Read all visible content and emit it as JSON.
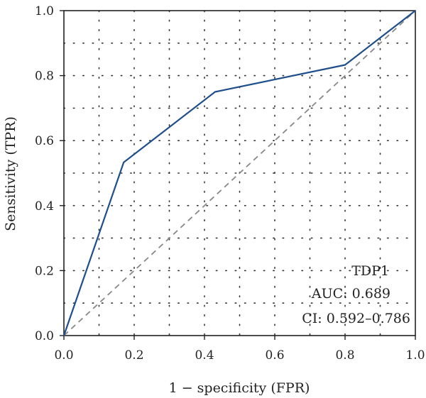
{
  "chart_data": {
    "type": "line",
    "title": "",
    "xlabel": "1 − specificity (FPR)",
    "ylabel": "Sensitivity (TPR)",
    "xlim": [
      0,
      1
    ],
    "ylim": [
      0,
      1
    ],
    "x_ticks": [
      "0.0",
      "0.2",
      "0.4",
      "0.6",
      "0.8",
      "1.0"
    ],
    "y_ticks": [
      "0.0",
      "0.2",
      "0.4",
      "0.6",
      "0.8",
      "1.0"
    ],
    "grid": "dotted",
    "series": [
      {
        "name": "TDP1",
        "color": "#1f4e8c",
        "style": "solid",
        "x": [
          0.0,
          0.17,
          0.43,
          0.8,
          1.0
        ],
        "y": [
          0.0,
          0.533,
          0.75,
          0.833,
          1.0
        ]
      },
      {
        "color": "#888888",
        "style": "dashed",
        "x": [
          0.0,
          1.0
        ],
        "y": [
          0.0,
          1.0
        ]
      }
    ],
    "annotations": {
      "label": "TDP1",
      "auc": "AUC: 0.689",
      "ci": "CI: 0.592–0.786"
    }
  }
}
